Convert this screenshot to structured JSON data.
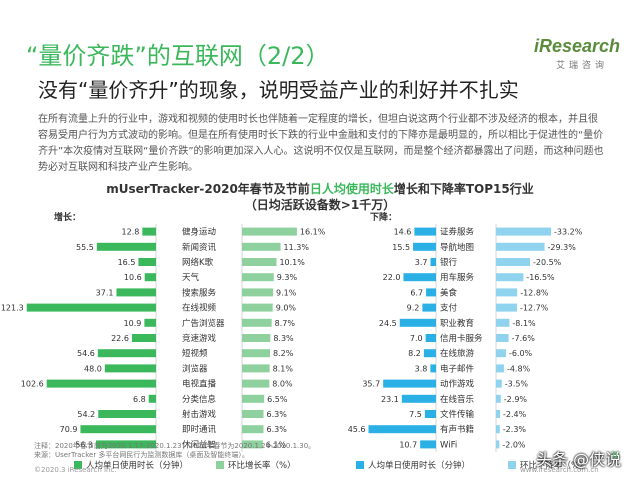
{
  "title": "“量价齐跌”的互联网（2/2）",
  "logo": "iResearch",
  "logo_sub": "艾瑞咨询",
  "subtitle": "没有“量价齐升”的现象，说明受益产业的利好并不扎实",
  "paragraph": "在所有流量上升的行业中，游戏和视频的使用时长也伴随着一定程度的增长，但坦白说这两个行业都不涉及经济的根本，并且很容易受用户行为方式波动的影响。但是在所有使用时长下跌的行业中金融和支付的下降亦是最明显的，所以相比于促进性的“量价齐升”本次疫情对互联网“量价齐跌”的影响更加深入人心。这说明不仅仅是互联网，而是整个经济都暴露出了问题，而这种问题也势必对互联网和科技产业产生影响。",
  "chart_title": {
    "prefix": "mUserTracker-2020年春节及节前",
    "highlight": "日人均使用时长",
    "suffix": "增长和下降率TOP15行业",
    "line2": "（日均活跃设备数>1千万）"
  },
  "colors": {
    "green": "#3cb85c",
    "green_light": "#8fd19e",
    "blue": "#2ab0e4",
    "blue_light": "#8fd3ef",
    "text": "#333333",
    "grid": "#bbbbbb"
  },
  "chart_data": [
    {
      "type": "bar",
      "panel_label": "增长：",
      "categories": [
        "健身运动",
        "新闻资讯",
        "网络K歌",
        "天气",
        "搜索服务",
        "在线视频",
        "广告浏览器",
        "竞速游戏",
        "短视频",
        "浏览器",
        "电视直播",
        "分类信息",
        "射击游戏",
        "即时通讯",
        "休闲益智"
      ],
      "series": [
        {
          "name": "人均单日使用时长（分钟）",
          "values": [
            12.8,
            55.5,
            16.5,
            10.6,
            37.1,
            121.3,
            10.9,
            22.6,
            54.6,
            48.0,
            102.6,
            6.8,
            54.2,
            70.9,
            56.3
          ]
        },
        {
          "name": "环比增长率（%）",
          "values": [
            16.1,
            11.3,
            10.1,
            9.3,
            9.1,
            9.0,
            8.7,
            8.3,
            8.2,
            8.1,
            8.0,
            6.5,
            6.3,
            6.3,
            6.1
          ],
          "labels": [
            "16.1%",
            "11.3%",
            "10.1%",
            "9.3%",
            "9.1%",
            "9.0%",
            "8.7%",
            "8.3%",
            "8.2%",
            "8.1%",
            "8.0%",
            "6.5%",
            "6.3%",
            "6.3%",
            "6.1%"
          ]
        }
      ],
      "value_labels": [
        "12.8",
        "55.5",
        "16.5",
        "10.6",
        "37.1",
        "121.3",
        "10.9",
        "22.6",
        "54.6",
        "48.0",
        "102.6",
        "6.8",
        "54.2",
        "70.9",
        "56.3"
      ]
    },
    {
      "type": "bar",
      "panel_label": "下降：",
      "categories": [
        "证券服务",
        "导航地图",
        "银行",
        "用车服务",
        "美食",
        "支付",
        "职业教育",
        "信用卡服务",
        "在线旅游",
        "电子邮件",
        "动作游戏",
        "在线音乐",
        "文件传输",
        "有声书籍",
        "WiFi"
      ],
      "series": [
        {
          "name": "人均单日使用时长（分钟）",
          "values": [
            14.6,
            15.5,
            3.7,
            22.0,
            6.7,
            9.2,
            24.5,
            7.0,
            8.2,
            3.8,
            35.7,
            23.1,
            7.5,
            45.6,
            10.7
          ]
        },
        {
          "name": "环比下降率（%）",
          "values": [
            -33.2,
            -29.3,
            -20.5,
            -16.5,
            -12.8,
            -12.7,
            -8.1,
            -7.6,
            -6.0,
            -4.8,
            -3.5,
            -2.9,
            -2.4,
            -2.3,
            -2.0
          ],
          "labels": [
            "-33.2%",
            "-29.3%",
            "-20.5%",
            "-16.5%",
            "-12.8%",
            "-12.7%",
            "-8.1%",
            "-7.6%",
            "-6.0%",
            "-4.8%",
            "-3.5%",
            "-2.9%",
            "-2.4%",
            "-2.3%",
            "-2.0%"
          ]
        }
      ],
      "value_labels": [
        "14.6",
        "15.5",
        "3.7",
        "22.0",
        "6.7",
        "9.2",
        "24.5",
        "7.0",
        "8.2",
        "3.8",
        "35.7",
        "23.1",
        "7.5",
        "45.6",
        "10.7"
      ]
    }
  ],
  "notes_line1": "注释：2020年春节前为2020.1.17-2020.1.23；2020年春节为2020.1.24-2020.1.30。",
  "notes_line2": "来源：UserTracker 多平台网民行为监测数据库（桌面及智能终端）。",
  "footer": "©2020.3 iResearch Inc.",
  "footer_url": "www.iresearch.com.cn",
  "page_number": "8",
  "watermark": "头条 @侠说"
}
